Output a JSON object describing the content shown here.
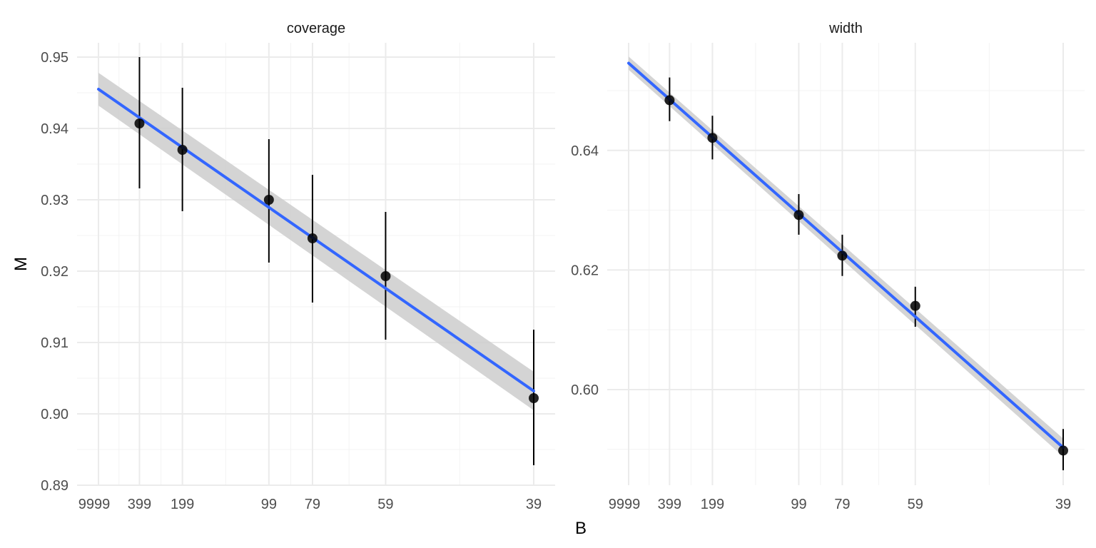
{
  "chart_data": {
    "type": "scatter",
    "x_title": "B",
    "y_title": "M",
    "x_categories": [
      "9999",
      "399",
      "199",
      "99",
      "79",
      "59",
      "39"
    ],
    "x_values": [
      9999,
      399,
      199,
      99,
      79,
      59,
      39
    ],
    "x_scale": "reciprocal",
    "grid": true,
    "panels": [
      {
        "title": "coverage",
        "ylim": [
          0.89,
          0.952
        ],
        "y_ticks": [
          0.89,
          0.9,
          0.91,
          0.92,
          0.93,
          0.94,
          0.95
        ],
        "y_tick_labels": [
          "0.89",
          "0.90",
          "0.91",
          "0.92",
          "0.93",
          "0.94",
          "0.95"
        ],
        "points": [
          {
            "x": 399,
            "y": 0.9407,
            "ymin": 0.9316,
            "ymax": 0.95
          },
          {
            "x": 199,
            "y": 0.937,
            "ymin": 0.9284,
            "ymax": 0.9457
          },
          {
            "x": 99,
            "y": 0.93,
            "ymin": 0.9212,
            "ymax": 0.9385
          },
          {
            "x": 79,
            "y": 0.9246,
            "ymin": 0.9156,
            "ymax": 0.9335
          },
          {
            "x": 59,
            "y": 0.9193,
            "ymin": 0.9104,
            "ymax": 0.9283
          },
          {
            "x": 39,
            "y": 0.9022,
            "ymin": 0.8928,
            "ymax": 0.9118
          }
        ],
        "fit": {
          "x": [
            9999,
            39
          ],
          "y": [
            0.9455,
            0.9032
          ],
          "ymin": [
            0.9432,
            0.9005
          ],
          "ymax": [
            0.9478,
            0.9059
          ]
        }
      },
      {
        "title": "width",
        "ylim": [
          0.584,
          0.658
        ],
        "y_ticks": [
          0.6,
          0.62,
          0.64
        ],
        "y_tick_labels": [
          "0.60",
          "0.62",
          "0.64"
        ],
        "points": [
          {
            "x": 399,
            "y": 0.6484,
            "ymin": 0.6449,
            "ymax": 0.6522
          },
          {
            "x": 199,
            "y": 0.6421,
            "ymin": 0.6385,
            "ymax": 0.6458
          },
          {
            "x": 99,
            "y": 0.6292,
            "ymin": 0.6259,
            "ymax": 0.6327
          },
          {
            "x": 79,
            "y": 0.6224,
            "ymin": 0.619,
            "ymax": 0.6259
          },
          {
            "x": 59,
            "y": 0.614,
            "ymin": 0.6105,
            "ymax": 0.6172
          },
          {
            "x": 39,
            "y": 0.5898,
            "ymin": 0.5865,
            "ymax": 0.5934
          }
        ],
        "fit": {
          "x": [
            9999,
            39
          ],
          "y": [
            0.6546,
            0.5903
          ],
          "ymin": [
            0.6535,
            0.5888
          ],
          "ymax": [
            0.6557,
            0.5918
          ]
        }
      }
    ],
    "colors": {
      "fit_line": "#3366ff",
      "ribbon": "#cccccc",
      "points": "#000000",
      "grid": "#ebebeb"
    }
  }
}
